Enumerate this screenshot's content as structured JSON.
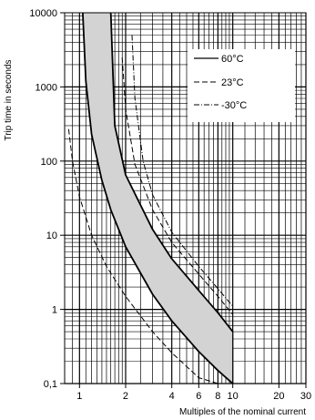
{
  "chart_data": {
    "type": "line",
    "title": "",
    "xlabel": "Multiples of the nominal current",
    "ylabel": "Trip time in seconds",
    "x_scale": "log",
    "y_scale": "log",
    "xlim": [
      0.8,
      30
    ],
    "ylim": [
      0.1,
      10000
    ],
    "x_ticks": [
      1,
      2,
      4,
      6,
      8,
      10,
      20,
      30
    ],
    "x_tick_labels": [
      "1",
      "2",
      "4",
      "6",
      "8",
      "10",
      "20",
      "30"
    ],
    "y_ticks": [
      0.1,
      1,
      10,
      100,
      1000,
      10000
    ],
    "y_tick_labels": [
      "0,1",
      "1",
      "10",
      "100",
      "1000",
      "10000"
    ],
    "grid": true,
    "legend_position": "top-right",
    "legend": [
      {
        "label": "60°C",
        "style": "solid"
      },
      {
        "label": "23°C",
        "style": "dashed"
      },
      {
        "label": "-30°C",
        "style": "dashdot"
      }
    ],
    "band_23C": {
      "style": "solid",
      "fill": "#d3d3d3",
      "lower": {
        "x": [
          1.05,
          1.1,
          1.2,
          1.4,
          1.6,
          2,
          3,
          4,
          6,
          8,
          10
        ],
        "y": [
          10000,
          1200,
          230,
          55,
          22,
          7,
          1.6,
          0.7,
          0.27,
          0.15,
          0.1
        ]
      },
      "upper": {
        "x": [
          1.6,
          1.7,
          2,
          3,
          4,
          6,
          8,
          10
        ],
        "y": [
          10000,
          300,
          65,
          12,
          4.8,
          1.8,
          0.9,
          0.5
        ]
      }
    },
    "series": [
      {
        "style": "dashed",
        "x": [
          0.85,
          0.9,
          1.0,
          1.2,
          1.5,
          2,
          3,
          4,
          6,
          8,
          9
        ],
        "y": [
          270,
          100,
          33,
          10,
          3.8,
          1.5,
          0.5,
          0.26,
          0.12,
          0.1,
          0.1
        ]
      },
      {
        "style": "dashdot",
        "x": [
          2.2,
          2.3,
          2.6,
          3,
          4,
          6,
          8,
          10
        ],
        "y": [
          5000,
          700,
          100,
          35,
          11,
          3.8,
          1.9,
          1.1
        ]
      },
      {
        "style": "dashed",
        "x": [
          1.9,
          2,
          2.3,
          3,
          4,
          6,
          8,
          10
        ],
        "y": [
          2500,
          500,
          90,
          22,
          8,
          3,
          1.5,
          0.85
        ]
      }
    ]
  }
}
